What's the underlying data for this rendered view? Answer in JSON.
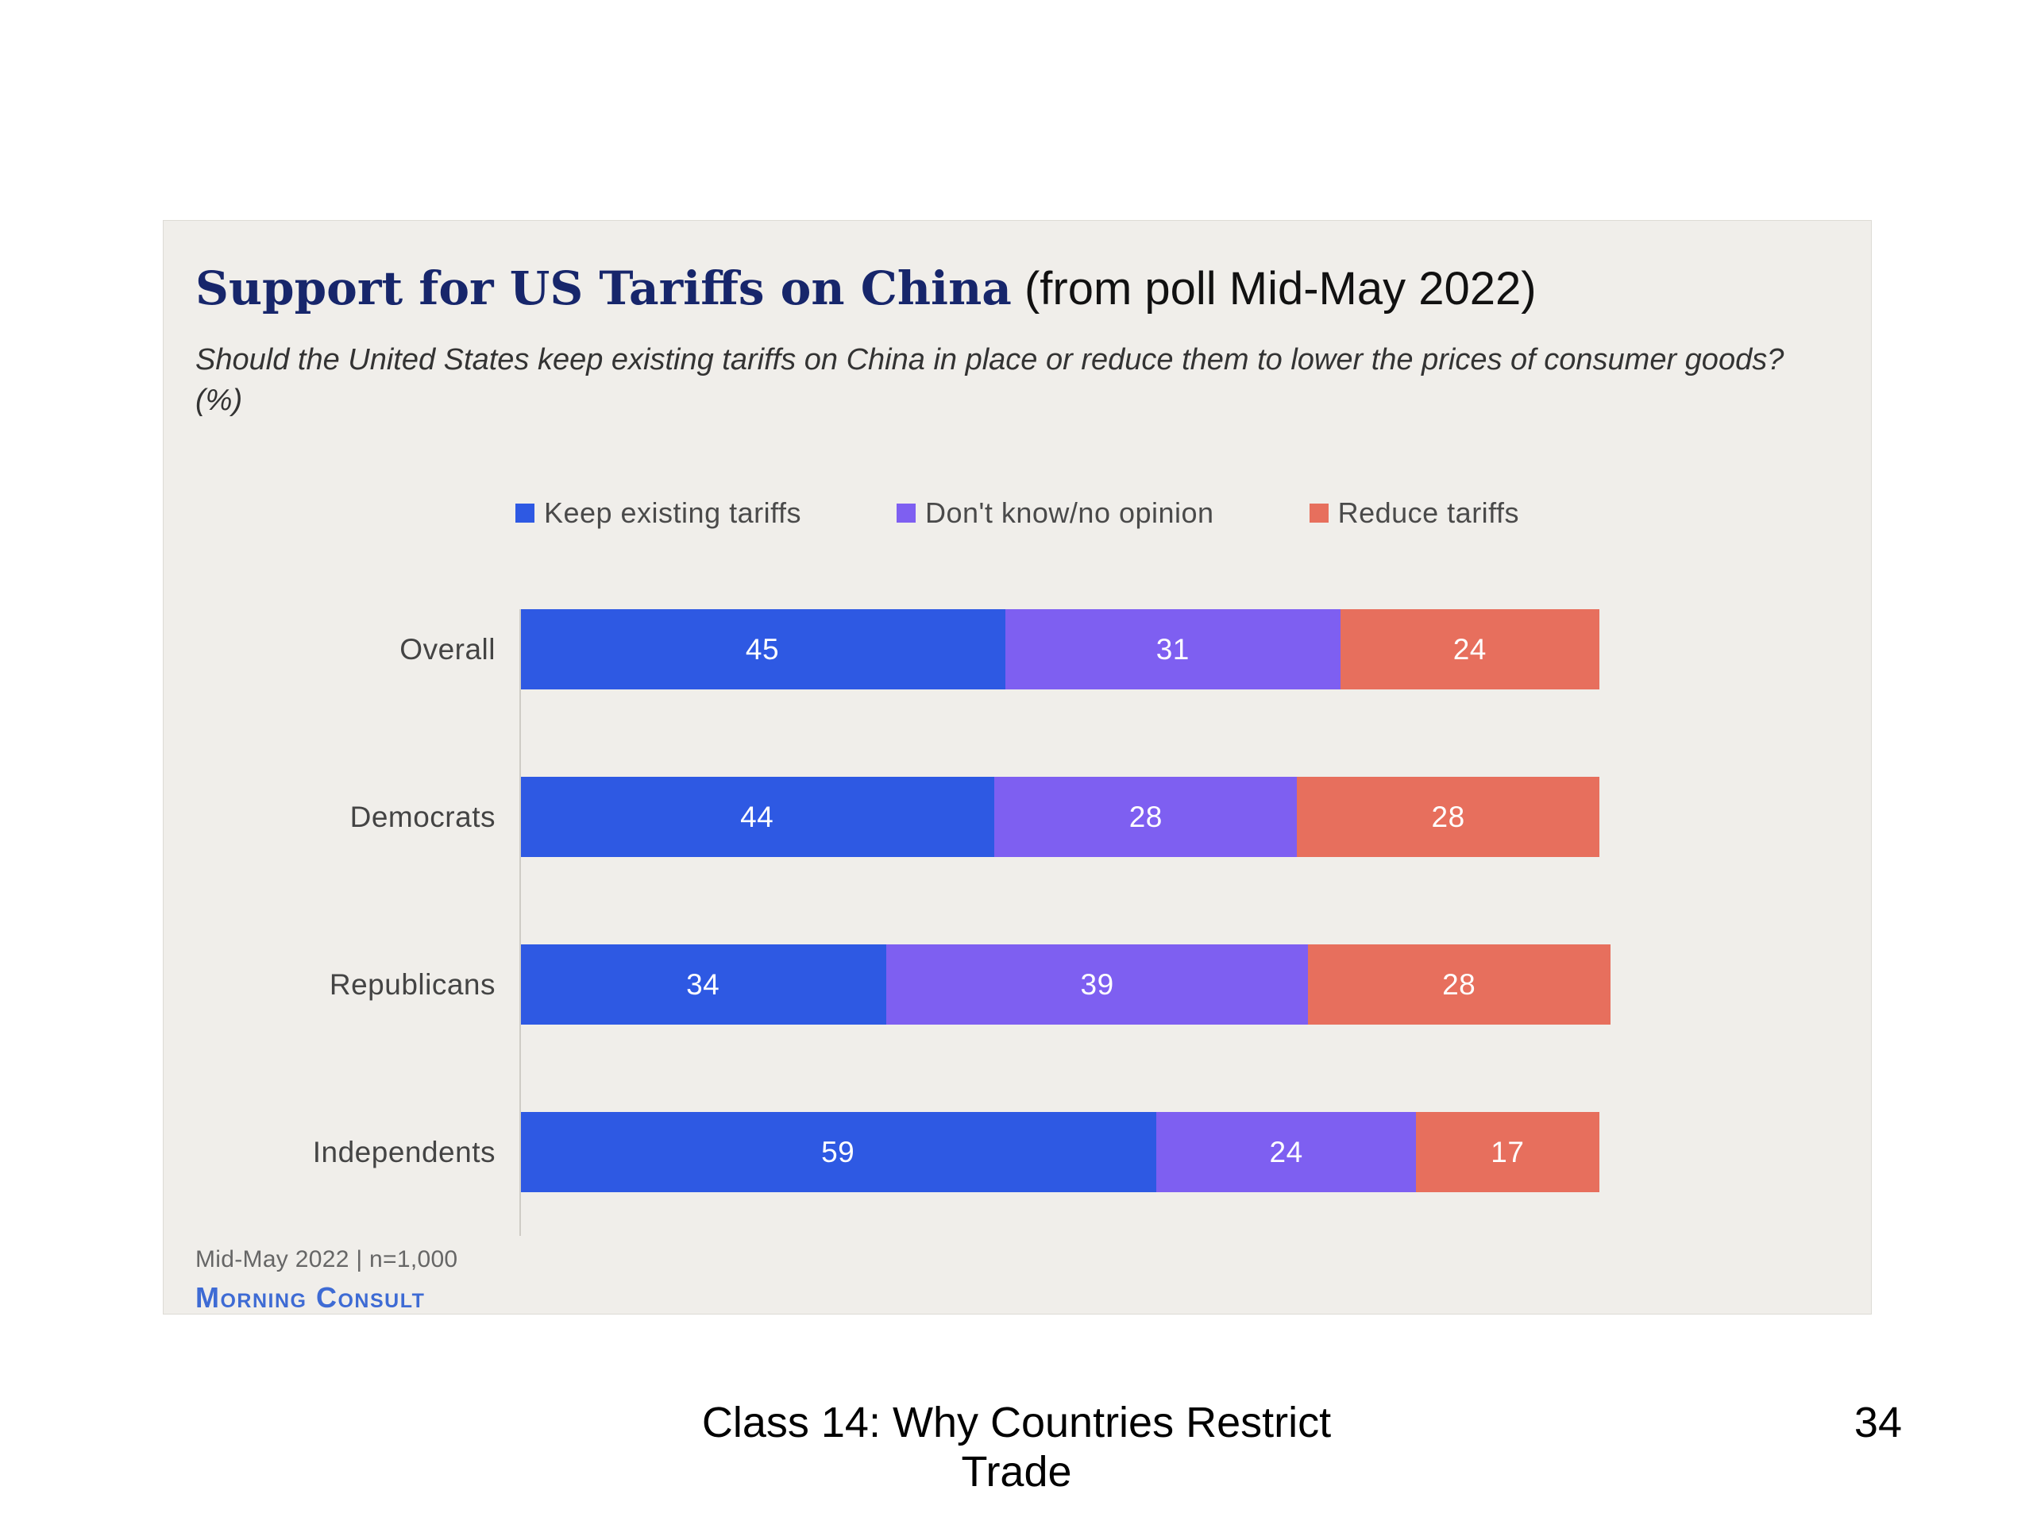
{
  "panel": {
    "title_bold": "Support for US Tariffs on China",
    "title_rest": " (from poll Mid-May 2022)",
    "subtitle": "Should the United States keep existing tariffs on China in place or reduce them to lower the prices of consumer goods? (%)",
    "source_line": "Mid-May 2022 | n=1,000",
    "brand": "Morning Consult"
  },
  "slide": {
    "footer_line1": "Class 14:  Why Countries Restrict",
    "footer_line2": "Trade",
    "page_number": "34"
  },
  "chart_data": {
    "type": "bar",
    "orientation": "horizontal",
    "stacked": true,
    "title": "Support for US Tariffs on China (from poll Mid-May 2022)",
    "subtitle": "Should the United States keep existing tariffs on China in place or reduce them to lower the prices of consumer goods? (%)",
    "categories": [
      "Overall",
      "Democrats",
      "Republicans",
      "Independents"
    ],
    "series": [
      {
        "name": "Keep existing tariffs",
        "color": "#2e59e3",
        "values": [
          45,
          44,
          34,
          59
        ]
      },
      {
        "name": "Don't know/no opinion",
        "color": "#7e5ff1",
        "values": [
          31,
          28,
          39,
          24
        ]
      },
      {
        "name": "Reduce tariffs",
        "color": "#e76f5d",
        "values": [
          24,
          28,
          28,
          17
        ]
      }
    ],
    "xlim": [
      0,
      100
    ],
    "grid": false,
    "legend_position": "top",
    "value_labels": "inside",
    "source": "Mid-May 2022 | n=1,000",
    "brand": "Morning Consult"
  }
}
